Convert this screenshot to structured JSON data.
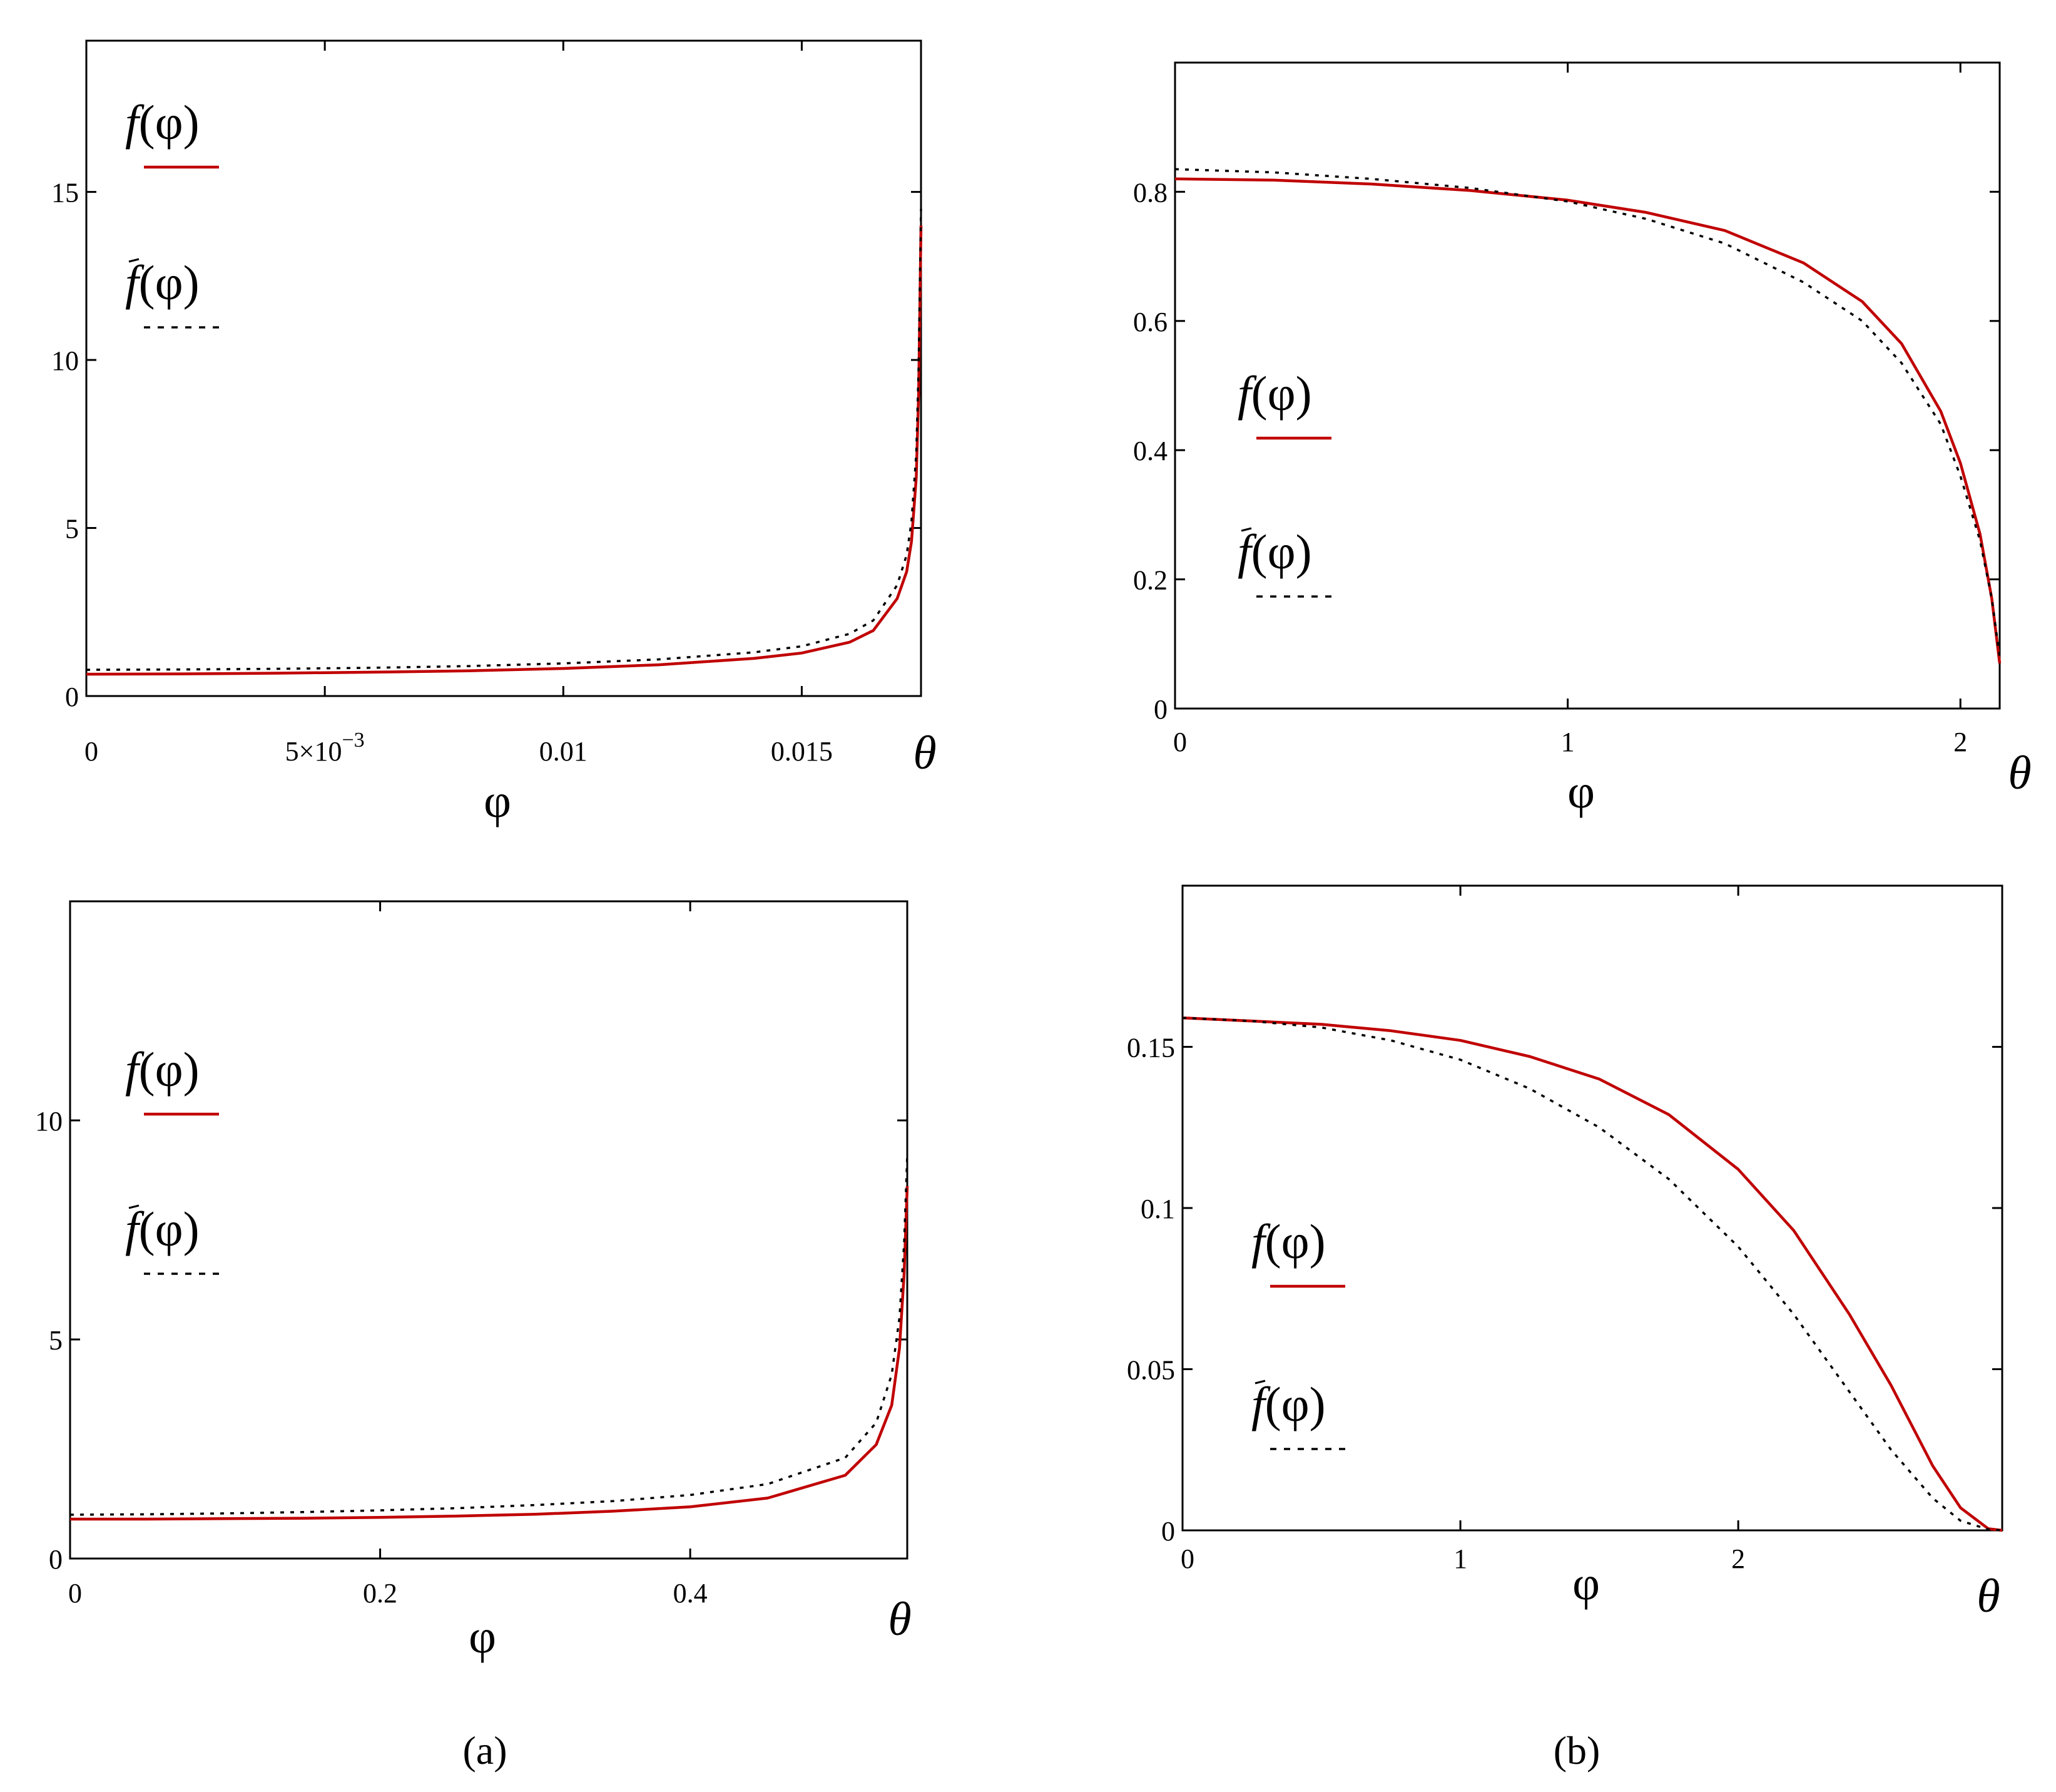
{
  "captions": {
    "a": "(a)",
    "b": "(b)"
  },
  "colors": {
    "f": "#c00000",
    "f_tilde": "#000000",
    "frame": "#000000"
  },
  "chart_data": [
    {
      "id": "top-left",
      "type": "line",
      "xlabel": "φ",
      "theta_label": "θ",
      "xlim": [
        0,
        0.0175
      ],
      "ylim": [
        0,
        19.5
      ],
      "x_ticks": [
        0,
        0.005,
        0.01,
        0.015
      ],
      "x_tick_labels": [
        "0",
        "5×10",
        "0.01",
        "0.015"
      ],
      "x_tick_superscripts": [
        "",
        "−3",
        "",
        ""
      ],
      "y_ticks": [
        0,
        5,
        10,
        15
      ],
      "y_tick_labels": [
        "0",
        "5",
        "10",
        "15"
      ],
      "legend": [
        {
          "label": "f",
          "arg": "(φ)",
          "tilde": false,
          "style": "solid"
        },
        {
          "label": "f",
          "arg": "(φ)",
          "tilde": true,
          "style": "dotted"
        }
      ],
      "series": [
        {
          "name": "f(φ)",
          "style": "solid",
          "x": [
            0,
            0.002,
            0.004,
            0.006,
            0.008,
            0.01,
            0.012,
            0.014,
            0.015,
            0.016,
            0.0165,
            0.017,
            0.0172,
            0.0173,
            0.0174,
            0.01745,
            0.0175
          ],
          "y": [
            0.65,
            0.66,
            0.68,
            0.71,
            0.75,
            0.82,
            0.93,
            1.12,
            1.28,
            1.6,
            1.95,
            2.9,
            3.7,
            4.6,
            6.5,
            9.0,
            14.0
          ]
        },
        {
          "name": "f̃(φ)",
          "style": "dotted",
          "x": [
            0,
            0.002,
            0.004,
            0.006,
            0.008,
            0.01,
            0.012,
            0.014,
            0.015,
            0.016,
            0.0165,
            0.017,
            0.0172,
            0.0173,
            0.0174,
            0.01745,
            0.0175
          ],
          "y": [
            0.78,
            0.79,
            0.81,
            0.84,
            0.89,
            0.97,
            1.09,
            1.3,
            1.48,
            1.85,
            2.25,
            3.3,
            4.2,
            5.2,
            7.2,
            9.8,
            14.5
          ]
        }
      ]
    },
    {
      "id": "top-right",
      "type": "line",
      "xlabel": "φ",
      "theta_label": "θ",
      "xlim": [
        0,
        2.1
      ],
      "ylim": [
        0,
        1.0
      ],
      "x_ticks": [
        0,
        1,
        2
      ],
      "x_tick_labels": [
        "0",
        "1",
        "2"
      ],
      "y_ticks": [
        0,
        0.2,
        0.4,
        0.6,
        0.8
      ],
      "y_tick_labels": [
        "0",
        "0.2",
        "0.4",
        "0.6",
        "0.8"
      ],
      "legend": [
        {
          "label": "f",
          "arg": "(φ)",
          "tilde": false,
          "style": "solid"
        },
        {
          "label": "f",
          "arg": "(φ)",
          "tilde": true,
          "style": "dotted"
        }
      ],
      "series": [
        {
          "name": "f(φ)",
          "style": "solid",
          "x": [
            0,
            0.25,
            0.5,
            0.75,
            1.0,
            1.2,
            1.4,
            1.6,
            1.75,
            1.85,
            1.95,
            2.0,
            2.05,
            2.08,
            2.1
          ],
          "y": [
            0.82,
            0.818,
            0.812,
            0.802,
            0.787,
            0.768,
            0.74,
            0.69,
            0.63,
            0.565,
            0.46,
            0.38,
            0.27,
            0.17,
            0.07
          ]
        },
        {
          "name": "f̃(φ)",
          "style": "dotted",
          "x": [
            0,
            0.25,
            0.5,
            0.75,
            1.0,
            1.2,
            1.4,
            1.6,
            1.75,
            1.85,
            1.95,
            2.0,
            2.05,
            2.08,
            2.1
          ],
          "y": [
            0.835,
            0.83,
            0.82,
            0.806,
            0.785,
            0.758,
            0.72,
            0.66,
            0.6,
            0.535,
            0.44,
            0.36,
            0.26,
            0.17,
            0.08
          ]
        }
      ]
    },
    {
      "id": "bottom-left",
      "type": "line",
      "xlabel": "φ",
      "theta_label": "θ",
      "xlim": [
        0,
        0.54
      ],
      "ylim": [
        0,
        15
      ],
      "x_ticks": [
        0,
        0.2,
        0.4
      ],
      "x_tick_labels": [
        "0",
        "0.2",
        "0.4"
      ],
      "y_ticks": [
        0,
        5,
        10
      ],
      "y_tick_labels": [
        "0",
        "5",
        "10"
      ],
      "legend": [
        {
          "label": "f",
          "arg": "(φ)",
          "tilde": false,
          "style": "solid"
        },
        {
          "label": "f",
          "arg": "(φ)",
          "tilde": true,
          "style": "dotted"
        }
      ],
      "series": [
        {
          "name": "f(φ)",
          "style": "solid",
          "x": [
            0,
            0.05,
            0.1,
            0.15,
            0.2,
            0.25,
            0.3,
            0.35,
            0.4,
            0.45,
            0.5,
            0.52,
            0.53,
            0.535,
            0.538,
            0.54
          ],
          "y": [
            0.9,
            0.9,
            0.91,
            0.92,
            0.94,
            0.97,
            1.01,
            1.08,
            1.18,
            1.38,
            1.9,
            2.6,
            3.5,
            4.8,
            6.5,
            8.5
          ]
        },
        {
          "name": "f̃(φ)",
          "style": "dotted",
          "x": [
            0,
            0.05,
            0.1,
            0.15,
            0.2,
            0.25,
            0.3,
            0.35,
            0.4,
            0.45,
            0.5,
            0.52,
            0.53,
            0.535,
            0.538,
            0.54
          ],
          "y": [
            1.0,
            1.01,
            1.03,
            1.06,
            1.1,
            1.15,
            1.22,
            1.31,
            1.45,
            1.7,
            2.3,
            3.1,
            4.2,
            5.5,
            7.2,
            9.2
          ]
        }
      ]
    },
    {
      "id": "bottom-right",
      "type": "line",
      "xlabel": "φ",
      "theta_label": "θ",
      "xlim": [
        0,
        2.95
      ],
      "ylim": [
        0,
        0.2
      ],
      "x_ticks": [
        0,
        1,
        2
      ],
      "x_tick_labels": [
        "0",
        "1",
        "2"
      ],
      "y_ticks": [
        0,
        0.05,
        0.1,
        0.15
      ],
      "y_tick_labels": [
        "0",
        "0.05",
        "0.1",
        "0.15"
      ],
      "legend": [
        {
          "label": "f",
          "arg": "(φ)",
          "tilde": false,
          "style": "solid"
        },
        {
          "label": "f",
          "arg": "(φ)",
          "tilde": true,
          "style": "dotted"
        }
      ],
      "series": [
        {
          "name": "f(φ)",
          "style": "solid",
          "x": [
            0,
            0.25,
            0.5,
            0.75,
            1.0,
            1.25,
            1.5,
            1.75,
            2.0,
            2.2,
            2.4,
            2.55,
            2.7,
            2.8,
            2.9,
            2.95
          ],
          "y": [
            0.159,
            0.158,
            0.157,
            0.155,
            0.152,
            0.147,
            0.14,
            0.129,
            0.112,
            0.093,
            0.067,
            0.045,
            0.02,
            0.007,
            0.0005,
            0
          ]
        },
        {
          "name": "f̃(φ)",
          "style": "dotted",
          "x": [
            0,
            0.25,
            0.5,
            0.75,
            1.0,
            1.25,
            1.5,
            1.75,
            2.0,
            2.2,
            2.4,
            2.55,
            2.7,
            2.8,
            2.9,
            2.95
          ],
          "y": [
            0.159,
            0.158,
            0.156,
            0.152,
            0.146,
            0.137,
            0.125,
            0.109,
            0.088,
            0.067,
            0.043,
            0.025,
            0.01,
            0.003,
            0.0003,
            0
          ]
        }
      ]
    }
  ]
}
